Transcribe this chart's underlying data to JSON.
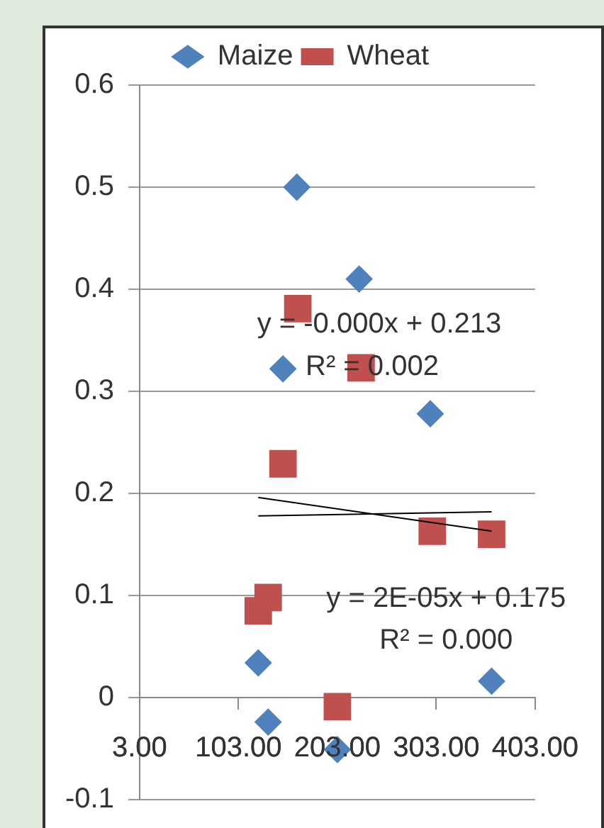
{
  "chart_data": {
    "type": "scatter",
    "series": [
      {
        "name": "Maize",
        "color": "#4f81bd",
        "marker": "diamond",
        "x": [
          162,
          225,
          148,
          297,
          123,
          133,
          203,
          359
        ],
        "values": [
          0.5,
          0.41,
          0.322,
          0.278,
          0.034,
          -0.024,
          -0.051,
          0.016
        ]
      },
      {
        "name": "Wheat",
        "color": "#c0504d",
        "marker": "square",
        "x": [
          163,
          227,
          148,
          299,
          359,
          133,
          123,
          203
        ],
        "values": [
          0.381,
          0.323,
          0.229,
          0.163,
          0.16,
          0.098,
          0.085,
          -0.009
        ]
      },
      {
        "type": "line",
        "color": "#000000",
        "x": [
          123,
          359
        ],
        "values": [
          0.196,
          0.163
        ]
      },
      {
        "type": "line",
        "color": "#000000",
        "x": [
          123,
          359
        ],
        "values": [
          0.178,
          0.182
        ]
      }
    ],
    "xlim": [
      3,
      403
    ],
    "xticks": [
      {
        "value": 3,
        "label": "3.00"
      },
      {
        "value": 103,
        "label": "103.00"
      },
      {
        "value": 203,
        "label": "203.00"
      },
      {
        "value": 303,
        "label": "303.00"
      },
      {
        "value": 403,
        "label": "403.00"
      }
    ],
    "ylim": [
      -0.1,
      0.6
    ],
    "yticks": [
      -0.1,
      0,
      0.1,
      0.2,
      0.3,
      0.4,
      0.5,
      0.6
    ],
    "grid": "y",
    "legend": "top",
    "annotations": [
      "y = -0.000x + 0.213",
      "R² = 0.002",
      "y = 2E-05x + 0.175",
      "R² = 0.000"
    ]
  }
}
